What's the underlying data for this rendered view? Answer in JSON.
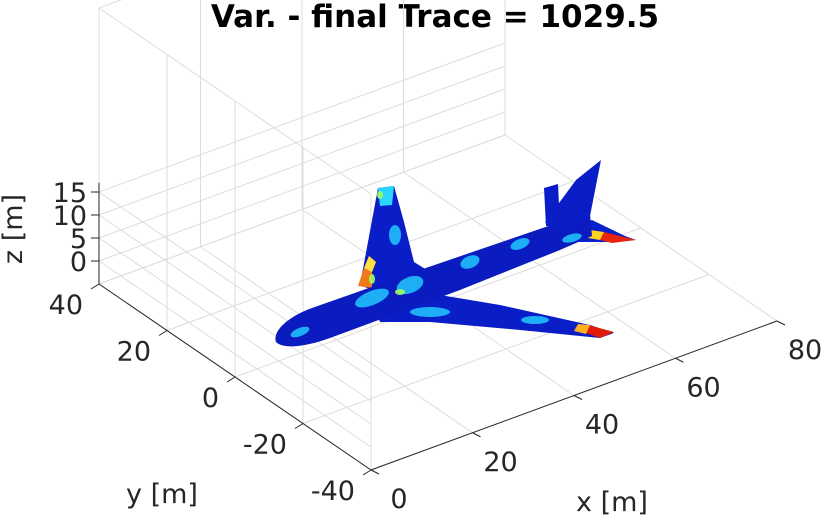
{
  "chart_data": {
    "type": "surface3d",
    "title": "Var. - final Trace = 1029.5",
    "xlabel": "x [m]",
    "ylabel": "y [m]",
    "zlabel": "z [m]",
    "xlim": [
      0,
      80
    ],
    "ylim": [
      -40,
      40
    ],
    "zlim": [
      -5,
      15
    ],
    "x_ticks": [
      "0",
      "20",
      "40",
      "60",
      "80"
    ],
    "y_ticks": [
      "-40",
      "-20",
      "0",
      "20",
      "40"
    ],
    "z_ticks": [
      "0",
      "5",
      "10",
      "15"
    ],
    "grid": true,
    "colormap": "jet",
    "colormap_colors": [
      "#00008f",
      "#0000ff",
      "#00ffff",
      "#ffff00",
      "#ff0000",
      "#800000"
    ]
  }
}
